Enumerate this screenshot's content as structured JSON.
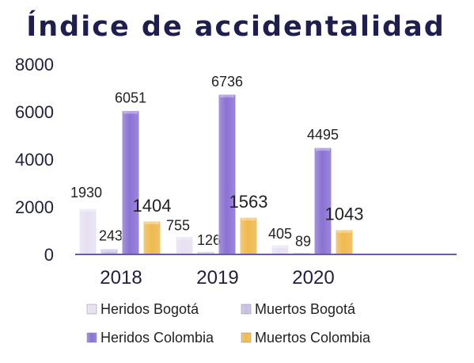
{
  "chart_data": {
    "type": "bar",
    "title": "Índice de accidentalidad",
    "xlabel": "",
    "ylabel": "",
    "categories": [
      "2018",
      "2019",
      "2020"
    ],
    "ylim": [
      0,
      8000
    ],
    "yticks": [
      "0",
      "2000",
      "4000",
      "6000",
      "8000"
    ],
    "grid": false,
    "legend_position": "bottom",
    "series": [
      {
        "name": "Heridos Bogotá",
        "values": [
          1930,
          755,
          405
        ],
        "color": "#e6e0f2",
        "label_size": "small"
      },
      {
        "name": "Muertos Bogotá",
        "values": [
          243,
          126,
          89
        ],
        "color": "#c7bfe2",
        "label_size": "small"
      },
      {
        "name": "Heridos Colombia",
        "values": [
          6051,
          6736,
          4495
        ],
        "color": "#8b72d4",
        "label_size": "small"
      },
      {
        "name": "Muertos Colombia",
        "values": [
          1404,
          1563,
          1043
        ],
        "color": "#efb94e",
        "label_size": "large"
      }
    ]
  }
}
